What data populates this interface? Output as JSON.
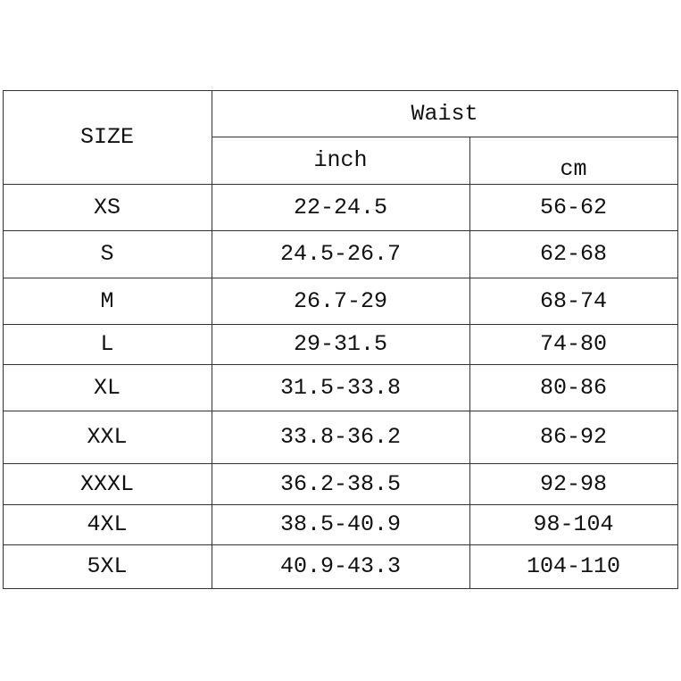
{
  "table": {
    "size_header": "SIZE",
    "group_header": "Waist",
    "unit_headers": [
      "inch",
      "cm"
    ],
    "rows": [
      {
        "size": "XS",
        "inch": "22-24.5",
        "cm": "56-62"
      },
      {
        "size": "S",
        "inch": "24.5-26.7",
        "cm": "62-68"
      },
      {
        "size": "M",
        "inch": "26.7-29",
        "cm": "68-74"
      },
      {
        "size": "L",
        "inch": "29-31.5",
        "cm": "74-80"
      },
      {
        "size": "XL",
        "inch": "31.5-33.8",
        "cm": "80-86"
      },
      {
        "size": "XXL",
        "inch": "33.8-36.2",
        "cm": "86-92"
      },
      {
        "size": "XXXL",
        "inch": "36.2-38.5",
        "cm": "92-98"
      },
      {
        "size": "4XL",
        "inch": "38.5-40.9",
        "cm": "98-104"
      },
      {
        "size": "5XL",
        "inch": "40.9-43.3",
        "cm": "104-110"
      }
    ]
  }
}
